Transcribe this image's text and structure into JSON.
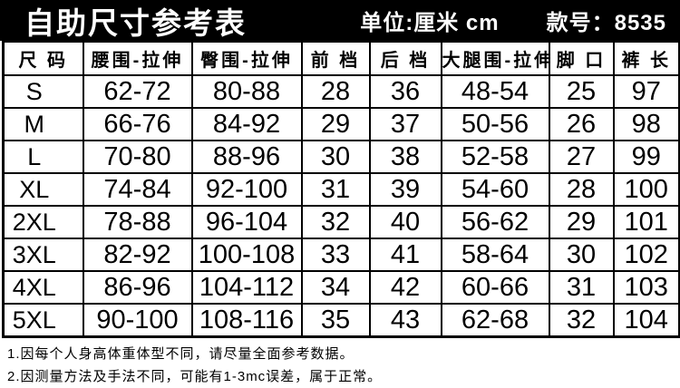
{
  "header": {
    "title": "自助尺寸参考表",
    "unit_label": "单位:厘米 cm",
    "style_label": "款号：8535"
  },
  "table": {
    "columns": [
      "尺 码",
      "腰围-拉伸",
      "臀围-拉伸",
      "前 档",
      "后 档",
      "大腿围-拉伸",
      "脚 口",
      "裤 长"
    ],
    "rows": [
      [
        "S",
        "62-72",
        "80-88",
        "28",
        "36",
        "48-54",
        "25",
        "97"
      ],
      [
        "M",
        "66-76",
        "84-92",
        "29",
        "37",
        "50-56",
        "26",
        "98"
      ],
      [
        "L",
        "70-80",
        "88-96",
        "30",
        "38",
        "52-58",
        "27",
        "99"
      ],
      [
        "XL",
        "74-84",
        "92-100",
        "31",
        "39",
        "54-60",
        "28",
        "100"
      ],
      [
        "2XL",
        "78-88",
        "96-104",
        "32",
        "40",
        "56-62",
        "29",
        "101"
      ],
      [
        "3XL",
        "82-92",
        "100-108",
        "33",
        "41",
        "58-64",
        "30",
        "102"
      ],
      [
        "4XL",
        "86-96",
        "104-112",
        "34",
        "42",
        "60-66",
        "31",
        "103"
      ],
      [
        "5XL",
        "90-100",
        "108-116",
        "35",
        "43",
        "62-68",
        "32",
        "104"
      ]
    ]
  },
  "notes": [
    "1.因每个人身高体重体型不同，请尽量全面参考数据。",
    "2.因测量方法及手法不同，可能有1-3mc误差，属于正常。"
  ],
  "colors": {
    "titlebar_bg": "#000000",
    "titlebar_text": "#ffffff",
    "table_border": "#000000",
    "table_text": "#000000",
    "background": "#ffffff"
  }
}
